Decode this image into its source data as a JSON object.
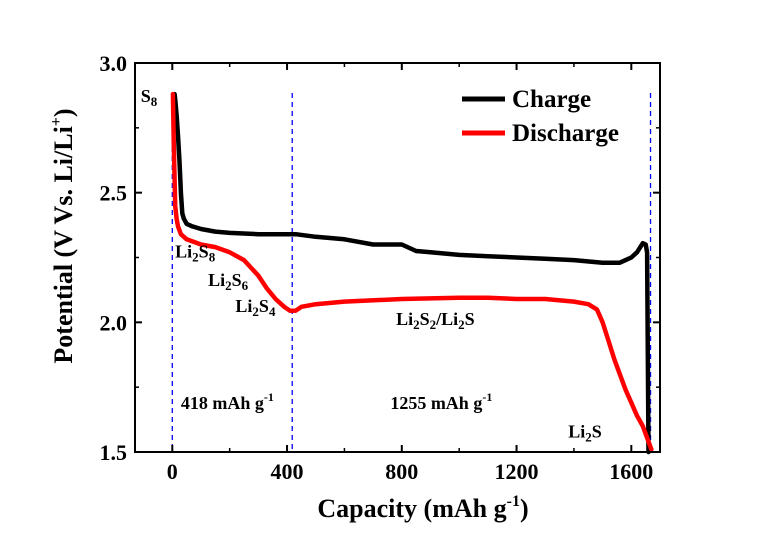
{
  "chart_data": {
    "type": "line",
    "title": "",
    "xlabel": "Capacity (mAh g",
    "xlabel_sup": "-1",
    "xlabel_end": ")",
    "ylabel": "Potential (V Vs. Li/Li",
    "ylabel_sup": "+",
    "ylabel_end": ")",
    "xlim": [
      -130,
      1700
    ],
    "ylim": [
      1.5,
      3.0
    ],
    "x_ticks": [
      0,
      400,
      800,
      1200,
      1600
    ],
    "x_tick_labels": [
      "0",
      "400",
      "800",
      "1200",
      "1600"
    ],
    "y_ticks": [
      1.5,
      2.0,
      2.5,
      3.0
    ],
    "y_tick_labels": [
      "1.5",
      "2.0",
      "2.5",
      "3.0"
    ],
    "legend_position": "top-right",
    "grid": false,
    "series": [
      {
        "name": "Charge",
        "color": "#000000",
        "x": [
          1660,
          1655,
          1650,
          1640,
          1620,
          1600,
          1580,
          1560,
          1500,
          1400,
          1300,
          1200,
          1100,
          1000,
          900,
          850,
          800,
          700,
          600,
          500,
          430,
          400,
          300,
          200,
          150,
          100,
          70,
          50,
          40,
          35,
          30,
          25,
          20,
          15,
          10,
          8
        ],
        "y": [
          1.5,
          2.27,
          2.3,
          2.305,
          2.27,
          2.25,
          2.24,
          2.23,
          2.23,
          2.24,
          2.245,
          2.25,
          2.255,
          2.26,
          2.27,
          2.275,
          2.3,
          2.3,
          2.32,
          2.33,
          2.34,
          2.34,
          2.34,
          2.345,
          2.35,
          2.36,
          2.37,
          2.38,
          2.4,
          2.42,
          2.5,
          2.62,
          2.72,
          2.8,
          2.86,
          2.88
        ]
      },
      {
        "name": "Discharge",
        "color": "#ff0000",
        "x": [
          2,
          5,
          8,
          10,
          15,
          20,
          30,
          50,
          100,
          150,
          200,
          250,
          300,
          330,
          360,
          390,
          410,
          430,
          450,
          500,
          600,
          800,
          1000,
          1100,
          1200,
          1300,
          1400,
          1450,
          1480,
          1500,
          1520,
          1540,
          1560,
          1580,
          1600,
          1620,
          1640,
          1660,
          1670
        ],
        "y": [
          2.88,
          2.7,
          2.55,
          2.45,
          2.4,
          2.37,
          2.34,
          2.32,
          2.3,
          2.29,
          2.27,
          2.24,
          2.18,
          2.13,
          2.09,
          2.06,
          2.045,
          2.045,
          2.06,
          2.07,
          2.08,
          2.09,
          2.095,
          2.095,
          2.09,
          2.09,
          2.08,
          2.07,
          2.05,
          2.0,
          1.93,
          1.86,
          1.8,
          1.74,
          1.69,
          1.64,
          1.6,
          1.54,
          1.51
        ]
      }
    ],
    "vertical_markers": [
      {
        "x": 0,
        "color": "#0000ff",
        "style": "dashed"
      },
      {
        "x": 418,
        "color": "#0000ff",
        "style": "dashed"
      },
      {
        "x": 1667,
        "color": "#0000ff",
        "style": "dashed"
      }
    ],
    "annotations": [
      {
        "id": "s8",
        "x": -110,
        "y": 2.85,
        "html": "S<tspan class=\"sub\">8</tspan>",
        "text": "S8"
      },
      {
        "id": "li2s8",
        "x": 10,
        "y": 2.25,
        "text": "Li2S8"
      },
      {
        "id": "li2s6",
        "x": 125,
        "y": 2.14,
        "text": "Li2S6"
      },
      {
        "id": "li2s4",
        "x": 220,
        "y": 2.04,
        "text": "Li2S4"
      },
      {
        "id": "li2s2-li2s",
        "x": 780,
        "y": 1.99,
        "text": "Li2S2/Li2S"
      },
      {
        "id": "cap1",
        "x": 30,
        "y": 1.665,
        "text": "418 mAh g",
        "sup": "-1"
      },
      {
        "id": "cap2",
        "x": 760,
        "y": 1.665,
        "text": "1255 mAh g",
        "sup": "-1"
      },
      {
        "id": "li2s",
        "x": 1380,
        "y": 1.555,
        "text": "Li2S"
      }
    ]
  }
}
